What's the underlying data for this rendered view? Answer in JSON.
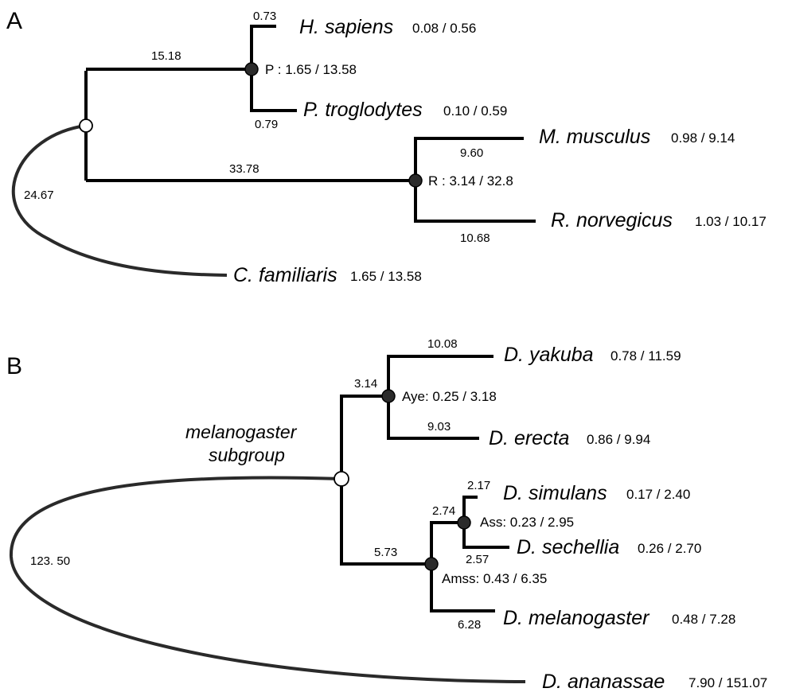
{
  "panel_a": {
    "label": "A",
    "branch_lengths": {
      "primate_stem": "15.18",
      "rodent_stem": "33.78",
      "dog": "24.67",
      "human": "0.73",
      "chimp": "0.79",
      "mouse": "9.60",
      "rat": "10.68"
    },
    "nodes": {
      "primates": "P : 1.65 / 13.58",
      "rodents": "R : 3.14 / 32.8"
    },
    "taxa": [
      {
        "name": "H. sapiens",
        "stat": "0.08 / 0.56"
      },
      {
        "name": "P. troglodytes",
        "stat": "0.10 / 0.59"
      },
      {
        "name": "M. musculus",
        "stat": "0.98 / 9.14"
      },
      {
        "name": "R. norvegicus",
        "stat": "1.03 / 10.17"
      },
      {
        "name": "C. familiaris",
        "stat": "1.65 / 13.58"
      }
    ]
  },
  "panel_b": {
    "label": "B",
    "group_label_line1": "melanogaster",
    "group_label_line2": "subgroup",
    "branch_lengths": {
      "aye_stem": "3.14",
      "amss_stem": "5.73",
      "ananassae": "123. 50",
      "yakuba": "10.08",
      "erecta": "9.03",
      "ass_stem": "2.74",
      "simulans": "2.17",
      "sechellia": "2.57",
      "melanogaster": "6.28"
    },
    "nodes": {
      "aye": "Aye: 0.25 / 3.18",
      "ass": "Ass: 0.23 / 2.95",
      "amss": "Amss: 0.43 / 6.35"
    },
    "taxa": [
      {
        "name": "D. yakuba",
        "stat": "0.78 / 11.59"
      },
      {
        "name": "D. erecta",
        "stat": "0.86 / 9.94"
      },
      {
        "name": "D. simulans",
        "stat": "0.17 / 2.40"
      },
      {
        "name": "D. sechellia",
        "stat": "0.26 / 2.70"
      },
      {
        "name": "D. melanogaster",
        "stat": "0.48 / 7.28"
      },
      {
        "name": "D. ananassae",
        "stat": "7.90 / 151.07"
      }
    ]
  }
}
